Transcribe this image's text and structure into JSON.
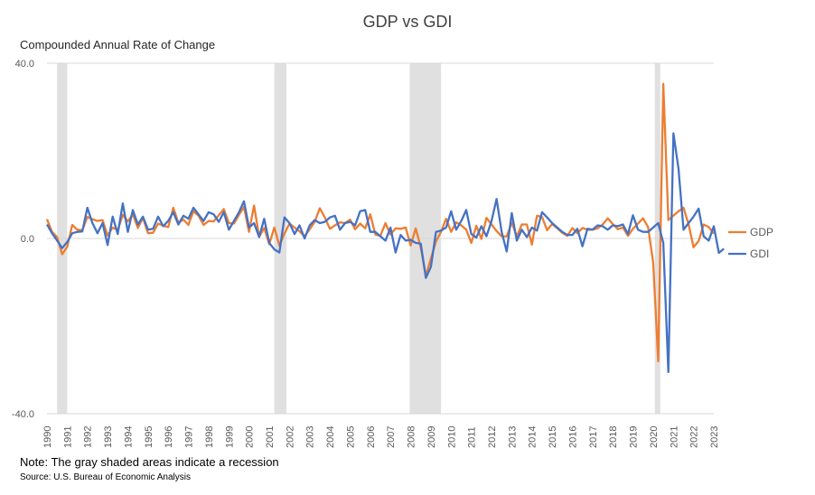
{
  "chart_data": {
    "type": "line",
    "title": "GDP vs GDI",
    "ylabel": "Compounded Annual Rate of Change",
    "xlabel": "",
    "ylim": [
      -40,
      40
    ],
    "yticks": [
      "40.0",
      "0.0",
      "-40.0"
    ],
    "ytick_values": [
      40,
      0,
      -40
    ],
    "xlim": [
      1990,
      2023
    ],
    "xticks": [
      "1990",
      "1991",
      "1992",
      "1993",
      "1994",
      "1995",
      "1996",
      "1997",
      "1998",
      "1999",
      "2000",
      "2001",
      "2002",
      "2003",
      "2004",
      "2005",
      "2006",
      "2007",
      "2008",
      "2009",
      "2010",
      "2011",
      "2012",
      "2013",
      "2014",
      "2015",
      "2016",
      "2017",
      "2018",
      "2019",
      "2020",
      "2021",
      "2022",
      "2023"
    ],
    "frequency": "quarterly, 1990Q1-2023Q1",
    "grid": "horizontal",
    "legend_position": "right",
    "recessions": [
      [
        1990.5,
        1991.0
      ],
      [
        2001.25,
        2001.85
      ],
      [
        2007.95,
        2009.5
      ],
      [
        2020.08,
        2020.35
      ]
    ],
    "series": [
      {
        "name": "GDP",
        "color": "#ED7D31",
        "values": [
          4.4,
          1.5,
          0.3,
          -3.6,
          -1.9,
          3.1,
          2.0,
          1.9,
          4.9,
          4.4,
          4.0,
          4.2,
          0.7,
          2.5,
          1.9,
          5.4,
          3.9,
          5.5,
          2.4,
          4.7,
          1.2,
          1.3,
          3.4,
          2.9,
          2.6,
          7.0,
          3.6,
          4.3,
          3.1,
          6.2,
          5.2,
          3.1,
          4.0,
          3.9,
          5.3,
          6.7,
          3.5,
          3.4,
          5.4,
          7.2,
          1.5,
          7.5,
          0.4,
          2.4,
          -1.3,
          2.5,
          -1.6,
          1.1,
          3.4,
          2.5,
          1.6,
          0.5,
          2.1,
          3.8,
          6.9,
          4.8,
          2.2,
          3.0,
          3.7,
          3.5,
          4.3,
          2.1,
          3.4,
          2.3,
          5.5,
          0.9,
          0.6,
          3.5,
          0.9,
          2.3,
          2.2,
          2.5,
          -1.6,
          2.3,
          -2.1,
          -8.5,
          -4.6,
          -0.7,
          1.5,
          4.5,
          1.5,
          3.7,
          3.0,
          2.0,
          -1.0,
          2.9,
          -0.1,
          4.7,
          3.2,
          1.7,
          0.5,
          0.5,
          3.6,
          0.5,
          3.2,
          3.2,
          -1.4,
          5.2,
          4.9,
          1.9,
          3.3,
          2.3,
          1.3,
          0.6,
          2.4,
          1.2,
          2.4,
          2.0,
          2.0,
          2.3,
          3.2,
          4.6,
          3.3,
          2.1,
          2.5,
          0.6,
          2.2,
          3.4,
          4.6,
          2.6,
          -5.5,
          -28.0,
          35.3,
          4.2,
          5.2,
          6.2,
          7.0,
          3.3,
          -2.0,
          -0.6,
          3.2,
          2.6,
          1.1
        ]
      },
      {
        "name": "GDI",
        "color": "#4472C4",
        "values": [
          3.2,
          1.2,
          -0.5,
          -2.2,
          -0.8,
          1.2,
          1.5,
          1.6,
          7.0,
          3.5,
          1.2,
          3.5,
          -1.5,
          5.0,
          1.0,
          8.0,
          1.5,
          6.5,
          3.2,
          5.0,
          2.0,
          2.2,
          5.0,
          2.8,
          4.0,
          6.0,
          3.2,
          5.2,
          4.5,
          7.0,
          5.5,
          4.0,
          6.0,
          5.5,
          3.8,
          6.0,
          2.0,
          4.0,
          6.0,
          8.5,
          2.5,
          3.5,
          0.3,
          4.5,
          -1.0,
          -2.5,
          -3.2,
          4.8,
          3.5,
          1.0,
          3.0,
          0.0,
          3.0,
          4.2,
          3.5,
          3.8,
          4.8,
          5.2,
          2.0,
          3.5,
          3.8,
          3.0,
          6.2,
          6.5,
          1.5,
          1.5,
          0.5,
          -0.5,
          2.5,
          -3.2,
          0.8,
          -0.5,
          -0.3,
          -1.0,
          -1.2,
          -9.0,
          -6.5,
          1.5,
          1.8,
          2.5,
          6.2,
          2.0,
          4.0,
          6.5,
          1.0,
          0.2,
          2.8,
          0.5,
          4.0,
          9.0,
          1.5,
          -3.0,
          5.8,
          -0.5,
          2.0,
          0.3,
          2.5,
          1.8,
          6.0,
          4.8,
          3.5,
          2.5,
          1.5,
          0.8,
          0.8,
          2.2,
          -1.8,
          2.2,
          2.0,
          3.0,
          2.8,
          2.0,
          3.0,
          2.8,
          3.2,
          1.0,
          5.3,
          2.0,
          1.5,
          1.5,
          2.5,
          3.5,
          -1.0,
          -30.5,
          24.0,
          16.0,
          2.0,
          3.5,
          5.0,
          6.8,
          0.5,
          -0.5,
          2.8,
          -3.3,
          -2.3
        ]
      }
    ]
  },
  "note": "Note: The gray shaded areas indicate a recession",
  "source": "Source: U.S. Bureau of Economic Analysis"
}
